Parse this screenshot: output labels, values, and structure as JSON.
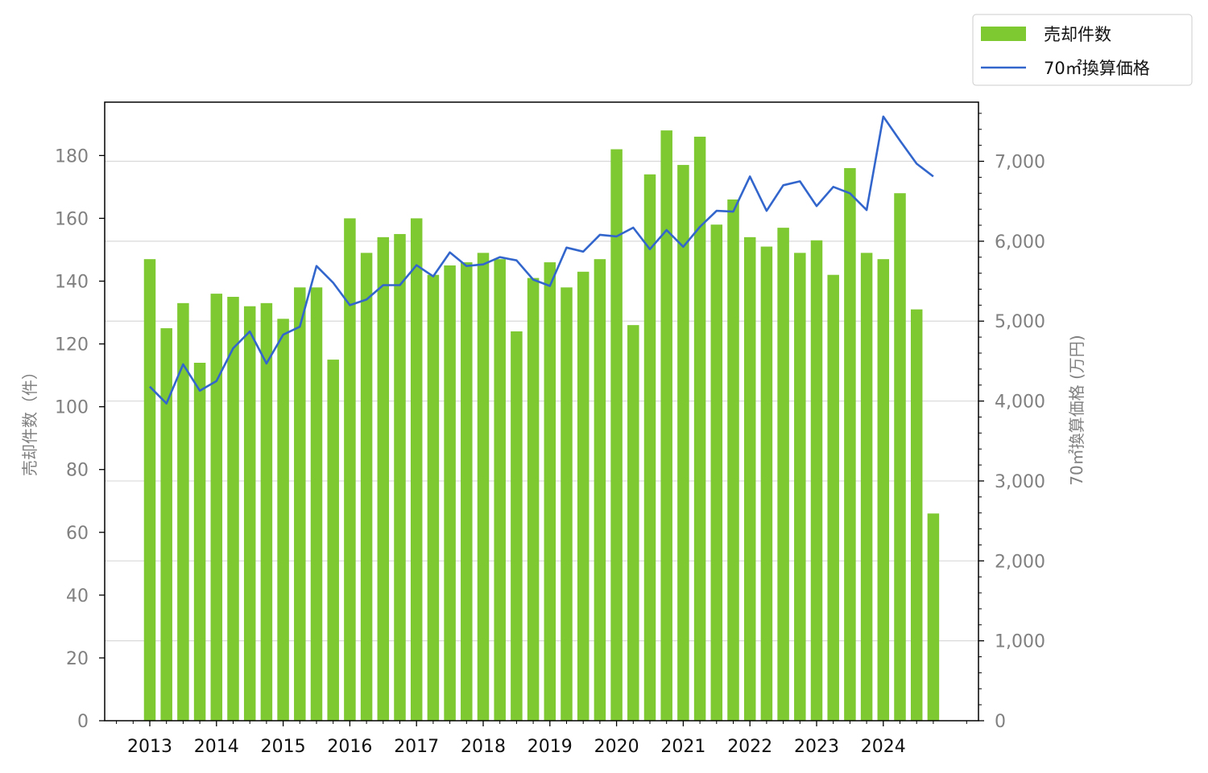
{
  "chart_data": {
    "type": "bar",
    "x_tick_labels": [
      "2013",
      "2014",
      "2015",
      "2016",
      "2017",
      "2018",
      "2019",
      "2020",
      "2021",
      "2022",
      "2023",
      "2024"
    ],
    "y_left": {
      "label": "売却件数（件）",
      "ylim": [
        0,
        197
      ],
      "ticks": [
        0,
        20,
        40,
        60,
        80,
        100,
        120,
        140,
        160,
        180
      ]
    },
    "y_right": {
      "label": "70㎡換算価格 (万円)",
      "ylim": [
        0,
        7740
      ],
      "ticks": [
        0,
        1000,
        2000,
        3000,
        4000,
        5000,
        6000,
        7000
      ],
      "tick_labels": [
        "0",
        "1,000",
        "2,000",
        "3,000",
        "4,000",
        "5,000",
        "6,000",
        "7,000"
      ]
    },
    "grid": "horizontal (right axis)",
    "legend_position": "top-right",
    "colors": {
      "bar": "#7ec932",
      "line": "#3366cc",
      "grid": "#d9d9d9",
      "tick_text": "#808080"
    },
    "series": [
      {
        "name": "売却件数",
        "type": "bar",
        "axis": "left",
        "x": [
          "2013Q1",
          "2013Q2",
          "2013Q3",
          "2013Q4",
          "2014Q1",
          "2014Q2",
          "2014Q3",
          "2014Q4",
          "2015Q1",
          "2015Q2",
          "2015Q3",
          "2015Q4",
          "2016Q1",
          "2016Q2",
          "2016Q3",
          "2016Q4",
          "2017Q1",
          "2017Q2",
          "2017Q3",
          "2017Q4",
          "2018Q1",
          "2018Q2",
          "2018Q3",
          "2018Q4",
          "2019Q1",
          "2019Q2",
          "2019Q3",
          "2019Q4",
          "2020Q1",
          "2020Q2",
          "2020Q3",
          "2020Q4",
          "2021Q1",
          "2021Q2",
          "2021Q3",
          "2021Q4",
          "2022Q1",
          "2022Q2",
          "2022Q3",
          "2022Q4",
          "2023Q1",
          "2023Q2",
          "2023Q3",
          "2023Q4",
          "2024Q1",
          "2024Q2",
          "2024Q3",
          "2024Q4"
        ],
        "values": [
          147,
          125,
          133,
          114,
          136,
          135,
          132,
          133,
          128,
          138,
          138,
          115,
          160,
          149,
          154,
          155,
          160,
          142,
          145,
          146,
          149,
          147,
          124,
          141,
          146,
          138,
          143,
          147,
          182,
          126,
          174,
          188,
          177,
          186,
          158,
          166,
          154,
          151,
          157,
          149,
          153,
          142,
          176,
          149,
          147,
          168,
          131,
          66
        ]
      },
      {
        "name": "70㎡換算価格",
        "type": "line",
        "axis": "right",
        "x": [
          "2013Q1",
          "2013Q2",
          "2013Q3",
          "2013Q4",
          "2014Q1",
          "2014Q2",
          "2014Q3",
          "2014Q4",
          "2015Q1",
          "2015Q2",
          "2015Q3",
          "2015Q4",
          "2016Q1",
          "2016Q2",
          "2016Q3",
          "2016Q4",
          "2017Q1",
          "2017Q2",
          "2017Q3",
          "2017Q4",
          "2018Q1",
          "2018Q2",
          "2018Q3",
          "2018Q4",
          "2019Q1",
          "2019Q2",
          "2019Q3",
          "2019Q4",
          "2020Q1",
          "2020Q2",
          "2020Q3",
          "2020Q4",
          "2021Q1",
          "2021Q2",
          "2021Q3",
          "2021Q4",
          "2022Q1",
          "2022Q2",
          "2022Q3",
          "2022Q4",
          "2023Q1",
          "2023Q2",
          "2023Q3",
          "2023Q4",
          "2024Q1",
          "2024Q2",
          "2024Q3",
          "2024Q4"
        ],
        "values": [
          4180,
          3970,
          4460,
          4130,
          4250,
          4660,
          4870,
          4470,
          4830,
          4930,
          5690,
          5480,
          5200,
          5270,
          5450,
          5450,
          5700,
          5560,
          5860,
          5690,
          5710,
          5800,
          5760,
          5520,
          5440,
          5920,
          5870,
          6080,
          6060,
          6170,
          5900,
          6140,
          5930,
          6180,
          6380,
          6370,
          6810,
          6380,
          6700,
          6750,
          6440,
          6680,
          6600,
          6390,
          7560,
          7260,
          6970,
          6810
        ]
      }
    ]
  }
}
